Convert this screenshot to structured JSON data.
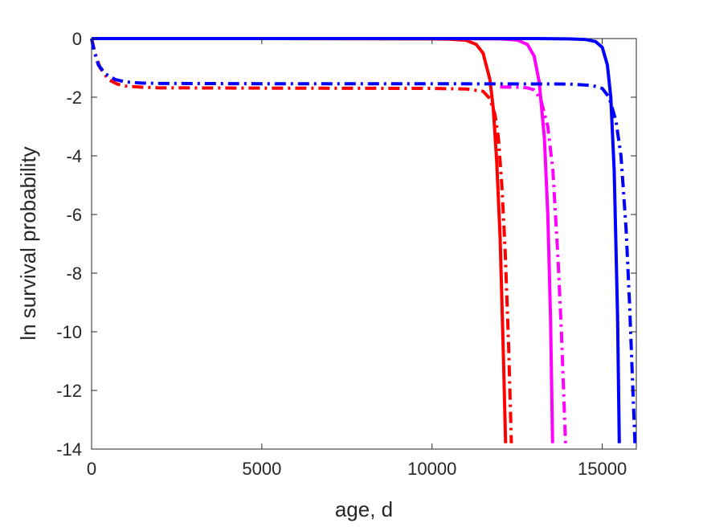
{
  "chart_data": {
    "type": "line",
    "title": "",
    "xlabel": "age, d",
    "ylabel": "ln survival probability",
    "xlim": [
      0,
      16000
    ],
    "ylim": [
      -14,
      0
    ],
    "xticks": [
      0,
      5000,
      10000,
      15000
    ],
    "yticks": [
      0,
      -2,
      -4,
      -6,
      -8,
      -10,
      -12,
      -14
    ],
    "xtick_labels": [
      "0",
      "5000",
      "10000",
      "15000"
    ],
    "ytick_labels": [
      "0",
      "-2",
      "-4",
      "-6",
      "-8",
      "-10",
      "-12",
      "-14"
    ],
    "grid": false,
    "legend": "none",
    "series": [
      {
        "color": "#ff0000",
        "style": "solid",
        "x": [
          0,
          5000,
          10000,
          10500,
          11000,
          11300,
          11500,
          11700,
          11800,
          11900,
          12000,
          12100,
          12160
        ],
        "y": [
          0,
          0,
          -0.01,
          -0.02,
          -0.06,
          -0.2,
          -0.5,
          -1.4,
          -2.4,
          -4.2,
          -6.8,
          -11.0,
          -13.8
        ]
      },
      {
        "color": "#ff0000",
        "style": "dashdot",
        "x": [
          0,
          100,
          250,
          500,
          750,
          1000,
          1500,
          2000,
          5000,
          10000,
          11000,
          11500,
          11700,
          11850,
          11950,
          12050,
          12150,
          12250,
          12330
        ],
        "y": [
          0,
          -0.5,
          -1.0,
          -1.4,
          -1.55,
          -1.62,
          -1.66,
          -1.68,
          -1.69,
          -1.7,
          -1.72,
          -1.8,
          -2.05,
          -2.6,
          -3.4,
          -5.0,
          -7.3,
          -10.5,
          -13.8
        ]
      },
      {
        "color": "#ff00ff",
        "style": "solid",
        "x": [
          0,
          5000,
          10000,
          12000,
          12500,
          12800,
          13000,
          13150,
          13300,
          13400,
          13480,
          13540
        ],
        "y": [
          0,
          0,
          0,
          -0.01,
          -0.05,
          -0.2,
          -0.6,
          -1.5,
          -3.4,
          -6.0,
          -9.5,
          -13.8
        ]
      },
      {
        "color": "#ff00ff",
        "style": "dashdot",
        "x": [
          12000,
          12500,
          12800,
          13000,
          13200,
          13400,
          13550,
          13700,
          13800,
          13880,
          13920
        ],
        "y": [
          -1.65,
          -1.66,
          -1.68,
          -1.75,
          -2.1,
          -3.0,
          -4.5,
          -7.5,
          -10.0,
          -12.5,
          -13.8
        ]
      },
      {
        "color": "#0000ff",
        "style": "solid",
        "x": [
          0,
          5000,
          10000,
          13000,
          14000,
          14500,
          14800,
          15000,
          15150,
          15250,
          15350,
          15450,
          15500
        ],
        "y": [
          0,
          0,
          0,
          0,
          -0.01,
          -0.03,
          -0.1,
          -0.3,
          -0.9,
          -2.0,
          -4.5,
          -9.5,
          -13.8
        ]
      },
      {
        "color": "#0000ff",
        "style": "dashdot",
        "x": [
          0,
          80,
          200,
          400,
          700,
          1000,
          1500,
          2000,
          5000,
          10000,
          14000,
          14700,
          15000,
          15200,
          15400,
          15550,
          15700,
          15800,
          15900,
          15960
        ],
        "y": [
          0,
          -0.45,
          -0.9,
          -1.2,
          -1.4,
          -1.48,
          -1.52,
          -1.53,
          -1.54,
          -1.54,
          -1.55,
          -1.6,
          -1.7,
          -2.0,
          -2.8,
          -4.0,
          -6.5,
          -9.0,
          -12.0,
          -13.8
        ]
      }
    ]
  }
}
